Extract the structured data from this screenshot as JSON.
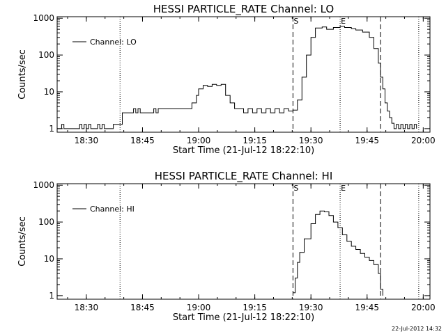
{
  "colors": {
    "background": "#ffffff",
    "ink": "#000000"
  },
  "footer_timestamp": "22-Jul-2012 14:32",
  "chart_data": [
    {
      "type": "line",
      "title": "HESSI PARTICLE_RATE Channel: LO",
      "xlabel": "Start Time (21-Jul-12 18:22:10)",
      "ylabel": "Counts/sec",
      "yscale": "log",
      "xlim": [
        18.37,
        20.03
      ],
      "ylim": [
        0.8,
        1100
      ],
      "x_ticks": [
        18.5,
        18.75,
        19.0,
        19.25,
        19.5,
        19.75,
        20.0
      ],
      "x_tick_labels": [
        "18:30",
        "18:45",
        "19:00",
        "19:15",
        "19:30",
        "19:45",
        "20:00"
      ],
      "y_ticks": [
        1,
        10,
        100,
        1000
      ],
      "y_tick_labels": [
        "1",
        "10",
        "100",
        "1000"
      ],
      "legend": {
        "location": "top-left",
        "label": "Channel: LO"
      },
      "vlines": [
        {
          "x": 18.65,
          "style": "dotted",
          "label": ""
        },
        {
          "x": 19.42,
          "style": "dashed",
          "label": "S"
        },
        {
          "x": 19.63,
          "style": "dotted",
          "label": "E"
        },
        {
          "x": 19.81,
          "style": "dashed",
          "label": ""
        },
        {
          "x": 19.98,
          "style": "dotted",
          "label": ""
        }
      ],
      "series": [
        {
          "name": "Channel: LO",
          "x": [
            18.37,
            18.39,
            18.4,
            18.41,
            18.43,
            18.47,
            18.48,
            18.49,
            18.5,
            18.51,
            18.52,
            18.55,
            18.56,
            18.57,
            18.58,
            18.6,
            18.62,
            18.64,
            18.66,
            18.67,
            18.7,
            18.71,
            18.72,
            18.73,
            18.74,
            18.8,
            18.81,
            18.82,
            18.83,
            18.9,
            18.95,
            18.97,
            18.99,
            19.0,
            19.02,
            19.04,
            19.06,
            19.08,
            19.1,
            19.12,
            19.14,
            19.16,
            19.18,
            19.2,
            19.22,
            19.24,
            19.26,
            19.28,
            19.3,
            19.32,
            19.34,
            19.36,
            19.38,
            19.4,
            19.42,
            19.44,
            19.46,
            19.48,
            19.5,
            19.52,
            19.55,
            19.57,
            19.6,
            19.63,
            19.65,
            19.68,
            19.7,
            19.73,
            19.76,
            19.78,
            19.8,
            19.81,
            19.82,
            19.83,
            19.84,
            19.85,
            19.86,
            19.87,
            19.88,
            19.89,
            19.9,
            19.91,
            19.92,
            19.93,
            19.94,
            19.95,
            19.96,
            19.97
          ],
          "y": [
            1,
            1.3,
            1,
            1,
            1,
            1.3,
            1,
            1.3,
            1,
            1.3,
            1,
            1.3,
            1,
            1.3,
            1,
            1,
            1.3,
            1.3,
            2.7,
            2.7,
            2.7,
            3.5,
            2.7,
            3.5,
            2.7,
            3.5,
            2.7,
            3.5,
            3.5,
            3.5,
            3.5,
            5,
            8,
            12,
            15,
            14,
            16,
            15,
            16,
            8,
            5,
            3.5,
            3.5,
            2.7,
            3.5,
            2.7,
            3.5,
            2.7,
            3.5,
            2.7,
            3.5,
            2.7,
            3.5,
            3,
            3.2,
            6,
            25,
            100,
            300,
            540,
            580,
            500,
            560,
            600,
            560,
            520,
            480,
            420,
            300,
            150,
            60,
            25,
            12,
            5,
            3,
            2,
            1.4,
            1,
            1.3,
            1,
            1.3,
            1,
            1.3,
            1,
            1.3,
            1,
            1.3,
            1
          ]
        }
      ]
    },
    {
      "type": "line",
      "title": "HESSI PARTICLE_RATE Channel: HI",
      "xlabel": "Start Time (21-Jul-12 18:22:10)",
      "ylabel": "Counts/sec",
      "yscale": "log",
      "xlim": [
        18.37,
        20.03
      ],
      "ylim": [
        0.8,
        1100
      ],
      "x_ticks": [
        18.5,
        18.75,
        19.0,
        19.25,
        19.5,
        19.75,
        20.0
      ],
      "x_tick_labels": [
        "18:30",
        "18:45",
        "19:00",
        "19:15",
        "19:30",
        "19:45",
        "20:00"
      ],
      "y_ticks": [
        1,
        10,
        100,
        1000
      ],
      "y_tick_labels": [
        "1",
        "10",
        "100",
        "1000"
      ],
      "legend": {
        "location": "top-left",
        "label": "Channel: HI"
      },
      "vlines": [
        {
          "x": 18.65,
          "style": "dotted",
          "label": ""
        },
        {
          "x": 19.42,
          "style": "dashed",
          "label": "S"
        },
        {
          "x": 19.63,
          "style": "dotted",
          "label": "E"
        },
        {
          "x": 19.81,
          "style": "dashed",
          "label": ""
        },
        {
          "x": 19.98,
          "style": "dotted",
          "label": ""
        }
      ],
      "series": [
        {
          "name": "Channel: HI",
          "x": [
            19.42,
            19.43,
            19.44,
            19.45,
            19.47,
            19.5,
            19.52,
            19.54,
            19.56,
            19.58,
            19.6,
            19.62,
            19.64,
            19.66,
            19.68,
            19.7,
            19.72,
            19.74,
            19.76,
            19.78,
            19.8,
            19.81,
            19.82
          ],
          "y": [
            1.2,
            3,
            8,
            15,
            35,
            90,
            160,
            200,
            190,
            150,
            100,
            70,
            45,
            30,
            22,
            18,
            14,
            11,
            9,
            7,
            4,
            1.5,
            1
          ]
        }
      ]
    }
  ]
}
